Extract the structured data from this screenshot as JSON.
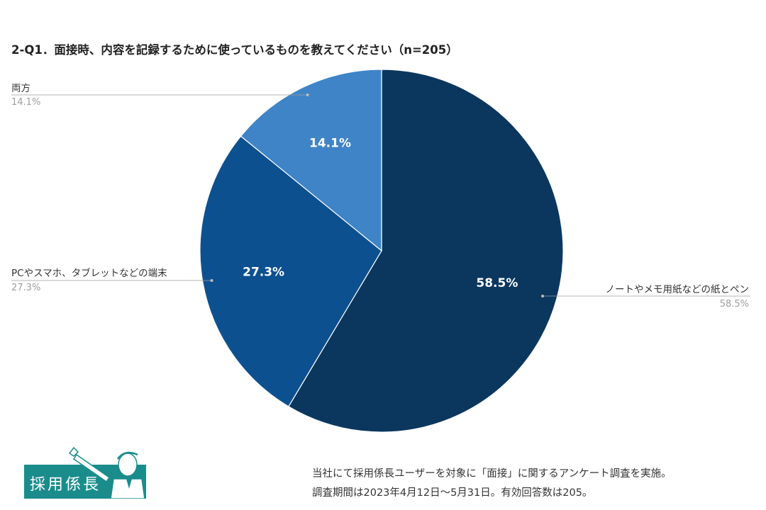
{
  "chart_data": {
    "type": "pie",
    "title": "2-Q1．面接時、内容を記録するために使っているものを教えてください（n=205）",
    "slices": [
      {
        "label": "ノートやメモ用紙などの紙とペン",
        "value": 58.5,
        "display": "58.5%",
        "color": "#0b375f"
      },
      {
        "label": "PCやスマホ、タブレットなどの端末",
        "value": 27.3,
        "display": "27.3%",
        "color": "#0d5090"
      },
      {
        "label": "両方",
        "value": 14.1,
        "display": "14.1%",
        "color": "#3f84c6"
      }
    ]
  },
  "logo": {
    "text": "採用係長"
  },
  "footnote": {
    "line1": "当社にて採用係長ユーザーを対象に「面接」に関するアンケート調査を実施。",
    "line2": "調査期間は2023年4月12日〜5月31日。有効回答数は205。"
  }
}
